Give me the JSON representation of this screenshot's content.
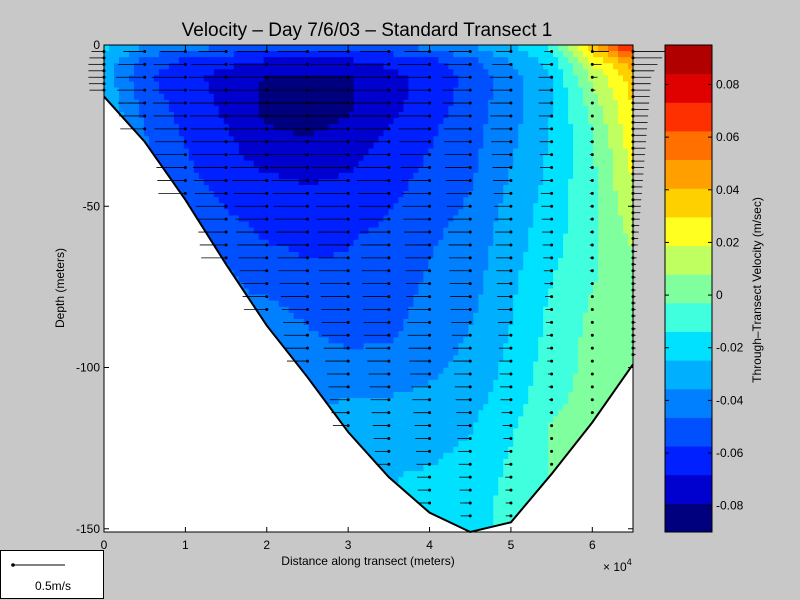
{
  "chart_data": {
    "type": "heatmap",
    "title": "Velocity – Day 7/6/03 – Standard Transect 1",
    "xlabel": "Distance along transect (meters)",
    "ylabel": "Depth (meters)",
    "x_multiplier": "× 10",
    "x_multiplier_exp": "4",
    "xlim": [
      0,
      65000
    ],
    "ylim": [
      -151,
      0
    ],
    "x_ticks": [
      0,
      10000,
      20000,
      30000,
      40000,
      50000,
      60000
    ],
    "x_tick_labels": [
      "0",
      "1",
      "2",
      "3",
      "4",
      "5",
      "6"
    ],
    "y_ticks": [
      0,
      -50,
      -100,
      -150
    ],
    "y_tick_labels": [
      "0",
      "-50",
      "-100",
      "-150"
    ],
    "colorbar": {
      "label": "Through–Transect Velocity (m/sec)",
      "range": [
        -0.09,
        0.095
      ],
      "ticks": [
        -0.08,
        -0.06,
        -0.04,
        -0.02,
        0,
        0.02,
        0.04,
        0.06,
        0.08
      ],
      "tick_labels": [
        "-0.08",
        "-0.06",
        "-0.04",
        "-0.02",
        "0",
        "0.02",
        "0.04",
        "0.06",
        "0.08"
      ],
      "colors": [
        "#00007f",
        "#0000cf",
        "#0020ff",
        "#0050ff",
        "#0080ff",
        "#00b0ff",
        "#00e0ff",
        "#40ffdf",
        "#80ff9f",
        "#c0ff60",
        "#ffff20",
        "#ffd000",
        "#ffa000",
        "#ff7000",
        "#ff3000",
        "#df0000",
        "#b00000"
      ]
    },
    "bottom_profile": [
      [
        0,
        -16
      ],
      [
        5000,
        -30
      ],
      [
        10000,
        -48
      ],
      [
        15000,
        -68
      ],
      [
        20000,
        -87
      ],
      [
        25000,
        -103
      ],
      [
        30000,
        -120
      ],
      [
        35000,
        -134
      ],
      [
        40000,
        -145
      ],
      [
        45000,
        -151
      ],
      [
        50000,
        -148
      ],
      [
        55000,
        -133
      ],
      [
        60000,
        -117
      ],
      [
        65000,
        -99
      ]
    ],
    "stations_x": [
      0,
      5000,
      10000,
      15000,
      20000,
      25000,
      30000,
      35000,
      40000,
      45000,
      50000,
      55000,
      60000,
      65000
    ],
    "velocity_field": {
      "x": [
        0,
        5000,
        10000,
        15000,
        20000,
        25000,
        30000,
        35000,
        40000,
        45000,
        50000,
        55000,
        60000,
        65000
      ],
      "depth": [
        0,
        -5,
        -10,
        -20,
        -30,
        -40,
        -50,
        -60,
        -70,
        -80,
        -90,
        -100,
        -110,
        -120,
        -130,
        -140,
        -150
      ],
      "values": [
        [
          -0.02,
          -0.035,
          -0.04,
          -0.045,
          -0.05,
          -0.05,
          -0.05,
          -0.05,
          -0.04,
          -0.035,
          -0.025,
          -0.01,
          0.04,
          0.08
        ],
        [
          -0.03,
          -0.05,
          -0.06,
          -0.065,
          -0.07,
          -0.07,
          -0.07,
          -0.065,
          -0.06,
          -0.05,
          -0.035,
          -0.02,
          0.02,
          0.05
        ],
        [
          -0.03,
          -0.055,
          -0.065,
          -0.072,
          -0.08,
          -0.083,
          -0.08,
          -0.072,
          -0.065,
          -0.055,
          -0.04,
          -0.025,
          0.01,
          0.035
        ],
        [
          -0.025,
          -0.05,
          -0.062,
          -0.07,
          -0.082,
          -0.085,
          -0.08,
          -0.072,
          -0.062,
          -0.052,
          -0.04,
          -0.025,
          0.0,
          0.03
        ],
        [
          null,
          -0.045,
          -0.058,
          -0.066,
          -0.076,
          -0.078,
          -0.075,
          -0.065,
          -0.058,
          -0.05,
          -0.038,
          -0.023,
          -0.005,
          0.025
        ],
        [
          null,
          null,
          -0.055,
          -0.063,
          -0.068,
          -0.07,
          -0.068,
          -0.062,
          -0.055,
          -0.048,
          -0.035,
          -0.022,
          -0.005,
          0.02
        ],
        [
          null,
          null,
          -0.05,
          -0.058,
          -0.062,
          -0.065,
          -0.062,
          -0.058,
          -0.052,
          -0.045,
          -0.032,
          -0.02,
          -0.005,
          0.015
        ],
        [
          null,
          null,
          null,
          -0.052,
          -0.058,
          -0.06,
          -0.058,
          -0.055,
          -0.048,
          -0.042,
          -0.03,
          -0.018,
          -0.005,
          0.01
        ],
        [
          null,
          null,
          null,
          -0.045,
          -0.052,
          -0.056,
          -0.056,
          -0.052,
          -0.046,
          -0.04,
          -0.028,
          -0.015,
          -0.005,
          0.005
        ],
        [
          null,
          null,
          null,
          null,
          -0.045,
          -0.05,
          -0.052,
          -0.05,
          -0.044,
          -0.038,
          -0.026,
          -0.012,
          -0.002,
          0.005
        ],
        [
          null,
          null,
          null,
          null,
          -0.04,
          -0.045,
          -0.05,
          -0.048,
          -0.042,
          -0.035,
          -0.024,
          -0.01,
          0.0,
          0.005
        ],
        [
          null,
          null,
          null,
          null,
          null,
          -0.038,
          -0.042,
          -0.04,
          -0.038,
          -0.032,
          -0.022,
          -0.008,
          0.0,
          null
        ],
        [
          null,
          null,
          null,
          null,
          null,
          null,
          -0.035,
          -0.035,
          -0.033,
          -0.028,
          -0.02,
          -0.005,
          null,
          null
        ],
        [
          null,
          null,
          null,
          null,
          null,
          null,
          -0.028,
          -0.03,
          -0.028,
          -0.025,
          -0.015,
          -0.002,
          null,
          null
        ],
        [
          null,
          null,
          null,
          null,
          null,
          null,
          null,
          -0.025,
          -0.025,
          -0.022,
          -0.012,
          null,
          null,
          null
        ],
        [
          null,
          null,
          null,
          null,
          null,
          null,
          null,
          null,
          -0.022,
          -0.02,
          -0.01,
          null,
          null,
          null
        ],
        [
          null,
          null,
          null,
          null,
          null,
          null,
          null,
          null,
          null,
          -0.018,
          null,
          null,
          null,
          null
        ]
      ]
    },
    "scale_vector": {
      "label": "0.5m/s",
      "value_mps": 0.5
    }
  }
}
